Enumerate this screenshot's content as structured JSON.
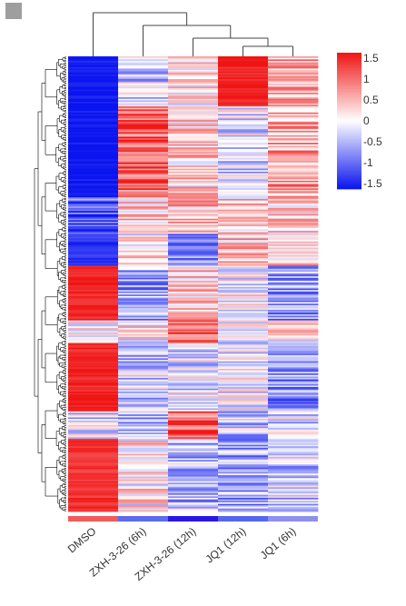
{
  "chart_data": {
    "type": "heatmap",
    "title": "",
    "xlabel": "",
    "ylabel": "",
    "columns": [
      "DMSO",
      "ZXH-3-26 (6h)",
      "ZXH-3-26 (12h)",
      "JQ1 (12h)",
      "JQ1 (6h)"
    ],
    "column_group_colors": [
      "#f25b5b",
      "#5b6cf0",
      "#2a17e6",
      "#5566ee",
      "#8f8ff2"
    ],
    "color_scale": {
      "min": -1.5,
      "max": 1.5,
      "low_color": "#0a14f0",
      "mid_color": "#ffffff",
      "high_color": "#f01414",
      "tick_labels": [
        "1.5",
        "1",
        "0.5",
        "0",
        "-0.5",
        "-1",
        "-1.5"
      ]
    },
    "row_dendrogram": true,
    "column_dendrogram": true,
    "row_blocks": [
      {
        "fraction": 0.11,
        "values": [
          -1.5,
          -0.3,
          0.1,
          1.4,
          0.5
        ]
      },
      {
        "fraction": 0.2,
        "values": [
          -1.5,
          1.1,
          0.3,
          -0.2,
          0.6
        ]
      },
      {
        "fraction": 0.08,
        "values": [
          -1.1,
          0.3,
          0.5,
          0.3,
          0.2
        ]
      },
      {
        "fraction": 0.07,
        "values": [
          -1.3,
          0.1,
          -0.8,
          0.4,
          0.3
        ]
      },
      {
        "fraction": 0.12,
        "values": [
          1.4,
          -0.6,
          0.4,
          0.0,
          -0.6
        ]
      },
      {
        "fraction": 0.05,
        "values": [
          -0.1,
          0.1,
          1.2,
          -0.2,
          0.2
        ]
      },
      {
        "fraction": 0.15,
        "values": [
          1.4,
          -0.3,
          -0.2,
          -0.1,
          -0.7
        ]
      },
      {
        "fraction": 0.06,
        "values": [
          -0.2,
          -0.5,
          1.0,
          -0.4,
          -0.3
        ]
      },
      {
        "fraction": 0.16,
        "values": [
          1.3,
          0.1,
          -0.4,
          -0.5,
          -0.3
        ]
      }
    ]
  }
}
